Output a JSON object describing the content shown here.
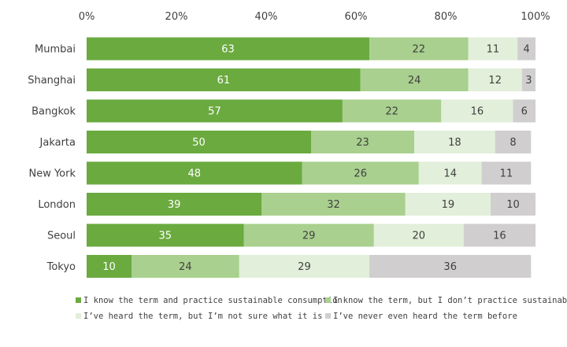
{
  "chart_data": {
    "type": "bar",
    "orientation": "horizontal",
    "stacked": true,
    "title": "",
    "xlabel": "",
    "ylabel": "",
    "xlim": [
      0,
      100
    ],
    "x_ticks": [
      "0%",
      "20%",
      "40%",
      "60%",
      "80%",
      "100%"
    ],
    "grid": false,
    "legend_position": "bottom",
    "categories": [
      "Mumbai",
      "Shanghai",
      "Bangkok",
      "Jakarta",
      "New York",
      "London",
      "Seoul",
      "Tokyo"
    ],
    "series": [
      {
        "name": "I know the term and practice sustainable consumption",
        "color": "#6aaa3f",
        "label_color": "#ffffff",
        "values": [
          63,
          61,
          57,
          50,
          48,
          39,
          35,
          10
        ]
      },
      {
        "name": "I know the term, but I don’t practice sustainable consumption",
        "color": "#a9d08e",
        "label_color": "#404040",
        "values": [
          22,
          24,
          22,
          23,
          26,
          32,
          29,
          24
        ]
      },
      {
        "name": "I’ve heard the term, but I’m not sure what it is",
        "color": "#e2efda",
        "label_color": "#404040",
        "values": [
          11,
          12,
          16,
          18,
          14,
          19,
          20,
          29
        ]
      },
      {
        "name": "I’ve never even heard the term before",
        "color": "#d0cece",
        "label_color": "#404040",
        "values": [
          4,
          3,
          6,
          8,
          11,
          10,
          16,
          36
        ]
      }
    ]
  }
}
